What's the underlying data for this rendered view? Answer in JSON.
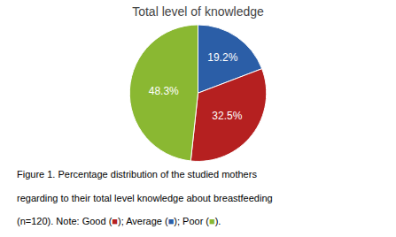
{
  "chart_data": {
    "type": "pie",
    "title": "Total level of knowledge",
    "categories": [
      "Average",
      "Good",
      "Poor"
    ],
    "values": [
      19.2,
      32.5,
      48.3
    ],
    "value_labels": [
      "19.2%",
      "32.5%",
      "48.3%"
    ],
    "colors": [
      "#2b5ea7",
      "#b52020",
      "#8ab832"
    ],
    "data_labels": true,
    "annotations": [
      [
        {
          "text": "Figure 1. Percentage distribution of the studied mothers"
        }
      ],
      [
        {
          "text": "regarding to their total level knowledge about breastfeeding"
        }
      ],
      [
        {
          "text": "(n=120). Note: Good ("
        },
        {
          "text": "■",
          "color": "#b52020"
        },
        {
          "text": "); Average ("
        },
        {
          "text": "■",
          "color": "#2b5ea7"
        },
        {
          "text": "); Poor ("
        },
        {
          "text": "■",
          "color": "#8ab832"
        },
        {
          "text": ")."
        }
      ]
    ]
  }
}
